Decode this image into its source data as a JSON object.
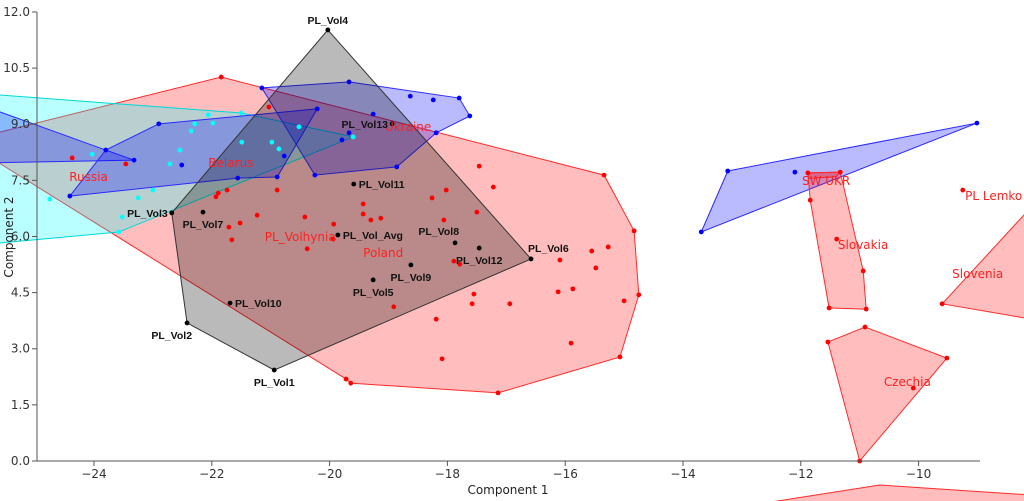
{
  "chart_data": {
    "type": "scatter",
    "xlabel": "Component 1",
    "ylabel": "Component 2",
    "xlim": [
      -25,
      -9
    ],
    "ylim": [
      0,
      12
    ],
    "xticks": [
      -24,
      -22,
      -20,
      -18,
      -16,
      -14,
      -12,
      -10
    ],
    "yticks": [
      "0.0",
      "1.5",
      "3.0",
      "4.5",
      "6.0",
      "7.5",
      "9.0",
      "10.5",
      "12.0"
    ],
    "grid": false,
    "colors": {
      "red": "#ff0000",
      "blue": "#0000ff",
      "cyan": "#00e5e5",
      "black": "#000000"
    },
    "groups": [
      {
        "name": "Poland",
        "color": "red",
        "hull": [
          [
            -26.21,
            8.55
          ],
          [
            -21.84,
            10.26
          ],
          [
            -15.34,
            7.64
          ],
          [
            -14.83,
            6.15
          ],
          [
            -14.75,
            4.44
          ],
          [
            -15.07,
            2.78
          ],
          [
            -17.14,
            1.82
          ],
          [
            -19.64,
            2.08
          ],
          [
            -19.72,
            2.19
          ]
        ],
        "points": [
          [
            -21.93,
            7.06
          ],
          [
            -21.89,
            7.16
          ],
          [
            -21.74,
            7.24
          ],
          [
            -20.89,
            7.24
          ],
          [
            -17.46,
            7.88
          ],
          [
            -17.22,
            7.32
          ],
          [
            -18.26,
            7.03
          ],
          [
            -18.02,
            7.24
          ],
          [
            -19.43,
            6.87
          ],
          [
            -19.43,
            6.6
          ],
          [
            -19.3,
            6.44
          ],
          [
            -19.13,
            6.49
          ],
          [
            -17.5,
            6.65
          ],
          [
            -18.06,
            6.44
          ],
          [
            -21.23,
            6.57
          ],
          [
            -21.52,
            6.36
          ],
          [
            -21.71,
            6.25
          ],
          [
            -20.42,
            6.52
          ],
          [
            -19.93,
            6.33
          ],
          [
            -19.94,
            5.93
          ],
          [
            -21.66,
            5.91
          ],
          [
            -20.38,
            5.67
          ],
          [
            -17.89,
            5.34
          ],
          [
            -17.79,
            5.26
          ],
          [
            -16.09,
            5.37
          ],
          [
            -17.55,
            4.46
          ],
          [
            -17.58,
            4.2
          ],
          [
            -16.94,
            4.2
          ],
          [
            -16.12,
            4.52
          ],
          [
            -18.19,
            3.79
          ],
          [
            -18.91,
            4.12
          ],
          [
            -18.09,
            2.73
          ],
          [
            -19.72,
            2.19
          ],
          [
            -19.64,
            2.08
          ],
          [
            -15.55,
            5.61
          ],
          [
            -15.27,
            5.72
          ],
          [
            -15.48,
            5.16
          ],
          [
            -15.87,
            4.6
          ],
          [
            -15.0,
            4.28
          ],
          [
            -15.9,
            3.15
          ],
          [
            -17.14,
            1.82
          ],
          [
            -15.34,
            7.64
          ],
          [
            -14.83,
            6.15
          ],
          [
            -14.75,
            4.44
          ],
          [
            -15.07,
            2.78
          ],
          [
            -21.84,
            10.26
          ],
          [
            -21.03,
            9.46
          ],
          [
            -24.37,
            8.1
          ],
          [
            -23.46,
            7.94
          ]
        ],
        "label": {
          "text": "Poland",
          "at": [
            -19.43,
            5.56
          ]
        }
      },
      {
        "name": "Belarus-cyan",
        "color": "cyan",
        "hull": [
          [
            -26.11,
            9.84
          ],
          [
            -21.5,
            9.3
          ],
          [
            -19.6,
            8.66
          ],
          [
            -23.58,
            6.12
          ],
          [
            -26.11,
            5.75
          ]
        ],
        "points": [
          [
            -24.75,
            7.0
          ],
          [
            -24.03,
            8.2
          ],
          [
            -23.52,
            6.52
          ],
          [
            -23.25,
            7.03
          ],
          [
            -23.0,
            7.24
          ],
          [
            -22.71,
            7.94
          ],
          [
            -22.54,
            8.31
          ],
          [
            -22.35,
            8.82
          ],
          [
            -22.29,
            9.01
          ],
          [
            -22.06,
            9.25
          ],
          [
            -21.98,
            9.03
          ],
          [
            -21.5,
            9.3
          ],
          [
            -21.49,
            8.52
          ],
          [
            -20.98,
            8.52
          ],
          [
            -20.86,
            8.34
          ],
          [
            -20.52,
            8.93
          ],
          [
            -19.6,
            8.66
          ],
          [
            -23.58,
            6.12
          ]
        ],
        "label": {
          "text": "Belarus",
          "at": [
            -22.06,
            7.96
          ]
        }
      },
      {
        "name": "Russia",
        "color": "blue",
        "hull": [
          [
            -26.11,
            9.62
          ],
          [
            -23.8,
            8.31
          ],
          [
            -23.32,
            8.04
          ],
          [
            -26.11,
            7.96
          ]
        ],
        "points": [
          [
            -23.8,
            8.31
          ],
          [
            -23.32,
            8.04
          ]
        ],
        "label": {
          "text": "Russia",
          "at": [
            -24.42,
            7.59
          ]
        }
      },
      {
        "name": "Belarus-blue",
        "color": "blue",
        "hull": [
          [
            -24.41,
            7.08
          ],
          [
            -23.8,
            8.31
          ],
          [
            -22.9,
            9.01
          ],
          [
            -20.21,
            9.41
          ],
          [
            -20.89,
            7.59
          ],
          [
            -21.56,
            7.56
          ]
        ],
        "points": [
          [
            -24.41,
            7.08
          ],
          [
            -22.9,
            9.01
          ],
          [
            -22.51,
            7.91
          ],
          [
            -21.56,
            7.56
          ],
          [
            -20.89,
            7.59
          ],
          [
            -20.77,
            8.15
          ],
          [
            -20.21,
            9.41
          ]
        ],
        "label": null
      },
      {
        "name": "Ukraine",
        "color": "blue",
        "hull": [
          [
            -21.15,
            9.97
          ],
          [
            -19.67,
            10.13
          ],
          [
            -17.8,
            9.7
          ],
          [
            -17.62,
            9.22
          ],
          [
            -18.19,
            8.77
          ],
          [
            -18.86,
            7.86
          ],
          [
            -20.25,
            7.64
          ]
        ],
        "points": [
          [
            -21.15,
            9.97
          ],
          [
            -19.67,
            10.13
          ],
          [
            -18.63,
            9.75
          ],
          [
            -18.24,
            9.65
          ],
          [
            -17.8,
            9.7
          ],
          [
            -17.62,
            9.22
          ],
          [
            -18.19,
            8.77
          ],
          [
            -18.86,
            7.86
          ],
          [
            -20.25,
            7.64
          ],
          [
            -19.26,
            9.27
          ],
          [
            -19.67,
            8.77
          ],
          [
            -19.79,
            8.58
          ]
        ],
        "label": {
          "text": "Ukraine",
          "at": [
            -19.06,
            8.93
          ]
        }
      },
      {
        "name": "SW UKR-blue",
        "color": "blue",
        "hull": [
          [
            -9.01,
            9.03
          ],
          [
            -13.24,
            7.75
          ],
          [
            -13.69,
            6.12
          ]
        ],
        "points": [
          [
            -9.01,
            9.03
          ],
          [
            -13.24,
            7.75
          ],
          [
            -13.69,
            6.12
          ],
          [
            -12.1,
            7.72
          ]
        ],
        "label": null
      },
      {
        "name": "SW UKR",
        "color": "red",
        "hull": [
          [
            -11.88,
            7.7
          ],
          [
            -11.33,
            7.72
          ],
          [
            -11.4,
            7.6
          ],
          [
            -11.87,
            7.55
          ]
        ],
        "points": [
          [
            -11.88,
            7.7
          ],
          [
            -11.33,
            7.72
          ]
        ],
        "label": {
          "text": "SW UKR",
          "at": [
            -11.98,
            7.48
          ]
        }
      },
      {
        "name": "Slovakia",
        "color": "red",
        "hull": [
          [
            -11.88,
            7.7
          ],
          [
            -11.33,
            7.72
          ],
          [
            -10.94,
            5.08
          ],
          [
            -10.89,
            4.06
          ],
          [
            -11.52,
            4.09
          ],
          [
            -11.84,
            6.97
          ]
        ],
        "points": [
          [
            -11.84,
            6.97
          ],
          [
            -10.94,
            5.08
          ],
          [
            -10.89,
            4.06
          ],
          [
            -11.52,
            4.09
          ],
          [
            -11.39,
            5.93
          ]
        ],
        "label": {
          "text": "Slovakia",
          "at": [
            -11.37,
            5.77
          ]
        }
      },
      {
        "name": "Czechia",
        "color": "red",
        "hull": [
          [
            -10.91,
            3.58
          ],
          [
            -9.52,
            2.75
          ],
          [
            -11.0,
            0.0
          ],
          [
            -11.54,
            3.18
          ]
        ],
        "points": [
          [
            -10.91,
            3.58
          ],
          [
            -9.52,
            2.75
          ],
          [
            -11.0,
            0.0
          ],
          [
            -11.54,
            3.18
          ],
          [
            -10.09,
            1.95
          ]
        ],
        "label": {
          "text": "Czechia",
          "at": [
            -10.59,
            2.11
          ]
        }
      },
      {
        "name": "Slovenia",
        "color": "red",
        "hull": [
          [
            -9.6,
            4.2
          ],
          [
            -7.6,
            7.62
          ],
          [
            -7.6,
            3.66
          ]
        ],
        "points": [
          [
            -9.6,
            4.2
          ]
        ],
        "label": {
          "text": "Slovenia",
          "at": [
            -9.43,
            5.0
          ]
        }
      },
      {
        "name": "PL Lemko",
        "color": "red",
        "hull": [],
        "points": [
          [
            -9.25,
            7.24
          ]
        ],
        "label": {
          "text": "PL Lemko",
          "at": [
            -9.21,
            7.08
          ]
        }
      },
      {
        "name": "bottom-group",
        "color": "red",
        "hull": [
          [
            -13.37,
            -1.31
          ],
          [
            -10.66,
            -0.64
          ],
          [
            -7.6,
            -0.96
          ],
          [
            -7.6,
            -1.58
          ]
        ],
        "points": [],
        "label": null
      },
      {
        "name": "PL_Volhynia",
        "color": "black",
        "hull": [
          [
            -20.03,
            11.52
          ],
          [
            -16.58,
            5.4
          ],
          [
            -20.94,
            2.43
          ],
          [
            -22.42,
            3.69
          ],
          [
            -22.68,
            6.63
          ]
        ],
        "points": [],
        "label": {
          "text": "PL_Volhynia",
          "at": [
            -21.1,
            5.99
          ]
        }
      }
    ],
    "samples": [
      {
        "text": "PL_Vol4",
        "x": -20.03,
        "y": 11.52,
        "pos": "above"
      },
      {
        "text": "PL_Vol6",
        "x": -16.58,
        "y": 5.4,
        "pos": "above-right"
      },
      {
        "text": "PL_Vol1",
        "x": -20.94,
        "y": 2.43,
        "pos": "below"
      },
      {
        "text": "PL_Vol2",
        "x": -22.42,
        "y": 3.69,
        "pos": "below-left"
      },
      {
        "text": "PL_Vol3",
        "x": -22.68,
        "y": 6.63,
        "pos": "left"
      },
      {
        "text": "PL_Vol7",
        "x": -22.15,
        "y": 6.65,
        "pos": "below"
      },
      {
        "text": "PL_Vol10",
        "x": -21.69,
        "y": 4.22,
        "pos": "right"
      },
      {
        "text": "PL_Vol11",
        "x": -19.59,
        "y": 7.4,
        "pos": "right"
      },
      {
        "text": "PL_Vol_Avg",
        "x": -19.86,
        "y": 6.04,
        "pos": "right"
      },
      {
        "text": "PL_Vol8",
        "x": -17.87,
        "y": 5.83,
        "pos": "above-left"
      },
      {
        "text": "PL_Vol12",
        "x": -17.46,
        "y": 5.69,
        "pos": "below"
      },
      {
        "text": "PL_Vol9",
        "x": -18.62,
        "y": 5.24,
        "pos": "below"
      },
      {
        "text": "PL_Vol5",
        "x": -19.26,
        "y": 4.84,
        "pos": "below"
      },
      {
        "text": "PL_Vol13",
        "x": -18.94,
        "y": 9.01,
        "pos": "left"
      }
    ]
  }
}
